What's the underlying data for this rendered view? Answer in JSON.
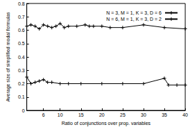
{
  "chart_data": {
    "type": "line",
    "x_label": "Ratio of conjunctions over prop. variables",
    "y_label": "Average size of simplified modal formulas",
    "xlim": [
      2,
      40
    ],
    "xticks": [
      6,
      10,
      15,
      20,
      25,
      30,
      35,
      40
    ],
    "ylim": [
      0,
      0.8
    ],
    "yticks": [
      0,
      0.1,
      0.2,
      0.3,
      0.4,
      0.5,
      0.6,
      0.7,
      0.8
    ],
    "grid": false,
    "legend": "top-right",
    "marker": "plus",
    "series": [
      {
        "name": "N = 3, M = 1, K = 3, D = 6",
        "color": "#000000",
        "x": [
          2,
          3,
          4,
          5,
          6,
          7,
          8,
          9,
          10,
          11,
          12,
          14,
          16,
          17,
          18,
          20,
          22,
          25,
          30,
          35,
          40
        ],
        "values": [
          0.63,
          0.64,
          0.63,
          0.61,
          0.64,
          0.63,
          0.62,
          0.63,
          0.65,
          0.62,
          0.63,
          0.63,
          0.64,
          0.63,
          0.63,
          0.63,
          0.62,
          0.62,
          0.64,
          0.62,
          0.61
        ]
      },
      {
        "name": "N = 6, M = 1, K = 3, D = 2",
        "color": "#000000",
        "x": [
          2,
          3,
          4,
          5,
          6,
          7,
          8,
          10,
          12,
          15,
          20,
          25,
          30,
          35,
          36,
          38,
          40
        ],
        "values": [
          0.25,
          0.2,
          0.21,
          0.22,
          0.23,
          0.21,
          0.21,
          0.2,
          0.2,
          0.2,
          0.2,
          0.2,
          0.2,
          0.24,
          0.19,
          0.19,
          0.19
        ]
      }
    ]
  }
}
